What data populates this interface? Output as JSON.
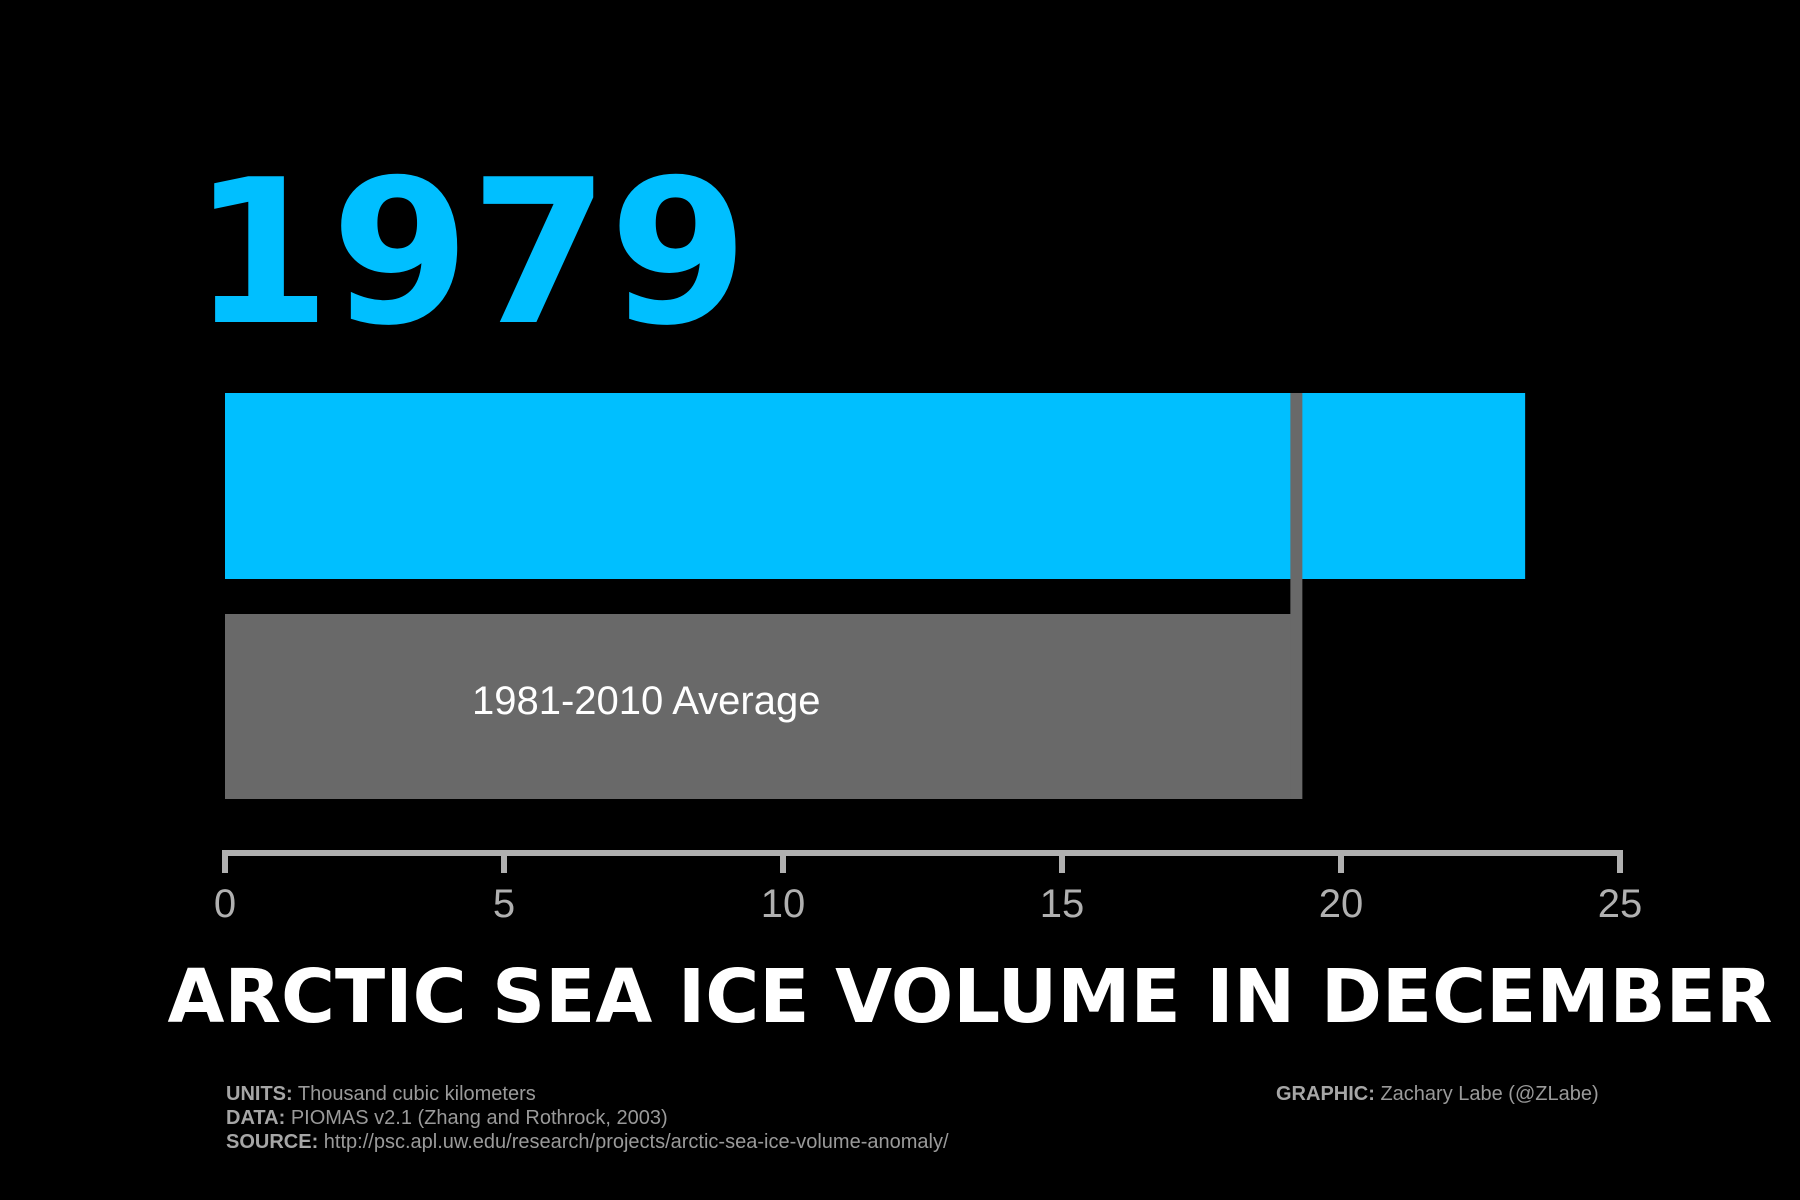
{
  "chart_data": {
    "type": "bar",
    "year": "1979",
    "series": [
      {
        "name": "1979",
        "value": 23.3,
        "color": "#00bfff"
      },
      {
        "name": "1981-2010 Average",
        "value": 19.2,
        "color": "#696969"
      }
    ],
    "average_label": "1981-2010 Average",
    "average_line_value": 19.2,
    "xlim": [
      0,
      25
    ],
    "x_ticks": [
      0,
      5,
      10,
      15,
      20,
      25
    ],
    "tick_labels": [
      "0",
      "5",
      "10",
      "15",
      "20",
      "25"
    ],
    "title": "ARCTIC SEA ICE VOLUME IN DECEMBER",
    "grid": false,
    "axis_color": "#b0b0b0",
    "background": "#000000"
  },
  "footer": {
    "units_key": "UNITS:",
    "units": "Thousand cubic kilometers",
    "data_key": "DATA:",
    "data": "PIOMAS v2.1 (Zhang and Rothrock, 2003)",
    "source_key": "SOURCE:",
    "source": "http://psc.apl.uw.edu/research/projects/arctic-sea-ice-volume-anomaly/",
    "graphic_key": "GRAPHIC:",
    "graphic": "Zachary Labe (@ZLabe)"
  }
}
